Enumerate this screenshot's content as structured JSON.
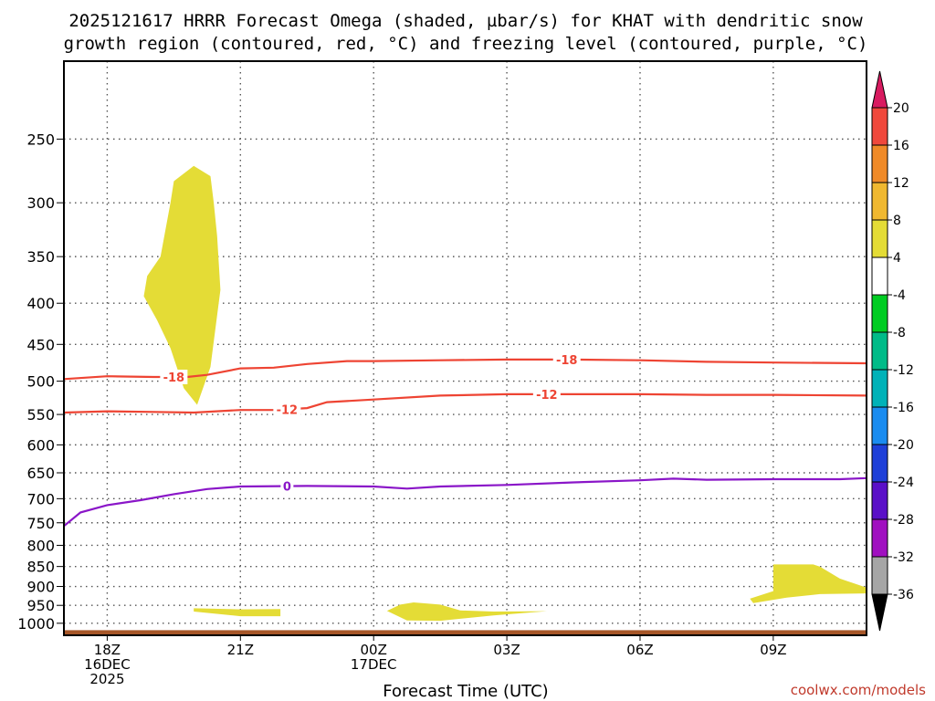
{
  "chart_data": {
    "type": "time-height cross section",
    "title_line1": "2025121617 HRRR Forecast Omega (shaded, µbar/s) for KHAT with dendritic snow",
    "title_line2": "growth region (contoured, red, °C) and freezing level (contoured, purple, °C)",
    "xlabel": "Forecast Time (UTC)",
    "credit": "coolwx.com/models",
    "x_range_hours": [
      -0.65,
      11.4
    ],
    "y_range_hpa": [
      200,
      1035
    ],
    "y_ticks": [
      250,
      300,
      350,
      400,
      450,
      500,
      550,
      600,
      650,
      700,
      750,
      800,
      850,
      900,
      950,
      1000
    ],
    "x_ticks": [
      {
        "hour": 0,
        "lines": [
          "18Z",
          "16DEC",
          "2025"
        ]
      },
      {
        "hour": 2,
        "lines": [
          "21Z"
        ]
      },
      {
        "hour": 4,
        "lines": [
          "00Z",
          "17DEC"
        ]
      },
      {
        "hour": 6,
        "lines": [
          "03Z"
        ]
      },
      {
        "hour": 8,
        "lines": [
          "06Z"
        ]
      },
      {
        "hour": 10,
        "lines": [
          "09Z"
        ]
      }
    ],
    "colorbar": {
      "ticks": [
        "20",
        "16",
        "12",
        "8",
        "4",
        "-4",
        "-8",
        "-12",
        "-16",
        "-20",
        "-24",
        "-28",
        "-32",
        "-36"
      ],
      "colors": [
        "#d81b60",
        "#f0483c",
        "#f08a28",
        "#f0b830",
        "#e4dc36",
        "#ffffff",
        "#00cc22",
        "#00bb88",
        "#00b2b8",
        "#1a8cf0",
        "#1e3fd8",
        "#5a10c8",
        "#a010c0",
        "#a6a6a6",
        "#000000"
      ]
    },
    "contours": [
      {
        "name": "minus-18-isotherm",
        "value": -18,
        "labels": [
          "-18",
          "-18"
        ],
        "label_hours": [
          1.0,
          6.9
        ],
        "color": "#ee4433",
        "points": [
          [
            -0.65,
            497
          ],
          [
            0,
            493
          ],
          [
            0.7,
            494
          ],
          [
            1.2,
            494
          ],
          [
            1.5,
            491
          ],
          [
            2,
            482
          ],
          [
            2.5,
            481
          ],
          [
            3,
            476
          ],
          [
            3.6,
            472
          ],
          [
            4,
            472
          ],
          [
            5,
            471
          ],
          [
            6,
            470
          ],
          [
            7,
            470
          ],
          [
            8,
            471
          ],
          [
            9,
            473
          ],
          [
            10,
            474
          ],
          [
            11.4,
            475
          ]
        ]
      },
      {
        "name": "minus-12-isotherm",
        "value": -12,
        "labels": [
          "-12",
          "-12"
        ],
        "label_hours": [
          2.7,
          6.6
        ],
        "color": "#ee4433",
        "points": [
          [
            -0.65,
            547
          ],
          [
            0,
            545
          ],
          [
            0.7,
            546
          ],
          [
            1.3,
            547
          ],
          [
            2,
            543
          ],
          [
            2.5,
            543
          ],
          [
            3,
            540
          ],
          [
            3.3,
            531
          ],
          [
            4,
            527
          ],
          [
            5,
            521
          ],
          [
            6,
            519
          ],
          [
            7,
            519
          ],
          [
            8,
            519
          ],
          [
            9,
            520
          ],
          [
            10,
            520
          ],
          [
            11.4,
            521
          ]
        ]
      },
      {
        "name": "freezing-level",
        "value": 0,
        "labels": [
          "0"
        ],
        "label_hours": [
          2.7
        ],
        "color": "#8a16c8",
        "points": [
          [
            -0.65,
            757
          ],
          [
            -0.4,
            728
          ],
          [
            0,
            713
          ],
          [
            0.5,
            703
          ],
          [
            1,
            691
          ],
          [
            1.5,
            681
          ],
          [
            2,
            676
          ],
          [
            3,
            675
          ],
          [
            4,
            676
          ],
          [
            4.5,
            680
          ],
          [
            5,
            676
          ],
          [
            6,
            673
          ],
          [
            7,
            668
          ],
          [
            8,
            664
          ],
          [
            8.5,
            661
          ],
          [
            9,
            663
          ],
          [
            10,
            662
          ],
          [
            11,
            662
          ],
          [
            11.4,
            660
          ]
        ]
      }
    ],
    "omega_regions": [
      {
        "name": "omega-upper",
        "value_band": "4 to 8",
        "color": "#e4dc36",
        "points": [
          [
            1.3,
            270
          ],
          [
            1.55,
            278
          ],
          [
            1.6,
            300
          ],
          [
            1.65,
            330
          ],
          [
            1.7,
            385
          ],
          [
            1.55,
            480
          ],
          [
            1.35,
            535
          ],
          [
            1.15,
            510
          ],
          [
            0.95,
            455
          ],
          [
            0.75,
            420
          ],
          [
            0.55,
            392
          ],
          [
            0.6,
            370
          ],
          [
            0.8,
            350
          ],
          [
            0.95,
            300
          ],
          [
            1.0,
            282
          ]
        ]
      },
      {
        "name": "omega-low-21z",
        "value_band": "4 to 8",
        "color": "#e4dc36",
        "points": [
          [
            1.3,
            958
          ],
          [
            2.0,
            961
          ],
          [
            2.6,
            960
          ],
          [
            2.6,
            980
          ],
          [
            2.0,
            980
          ],
          [
            1.3,
            967
          ]
        ]
      },
      {
        "name": "omega-low-01z",
        "value_band": "4 to 8",
        "color": "#e4dc36",
        "points": [
          [
            4.2,
            965
          ],
          [
            4.4,
            948
          ],
          [
            4.6,
            942
          ],
          [
            5.0,
            948
          ],
          [
            5.3,
            964
          ],
          [
            5.8,
            967
          ],
          [
            6.6,
            966
          ],
          [
            5.8,
            978
          ],
          [
            5.0,
            993
          ],
          [
            4.5,
            992
          ]
        ]
      },
      {
        "name": "omega-low-09z",
        "value_band": "4 to 8",
        "color": "#e4dc36",
        "points": [
          [
            10.0,
            845
          ],
          [
            10.6,
            845
          ],
          [
            10.7,
            850
          ],
          [
            11.0,
            880
          ],
          [
            11.4,
            903
          ],
          [
            11.4,
            918
          ],
          [
            10.7,
            920
          ],
          [
            10.2,
            929
          ],
          [
            9.7,
            944
          ],
          [
            9.65,
            932
          ],
          [
            10.0,
            912
          ]
        ]
      }
    ],
    "terrain": {
      "name": "surface-terrain",
      "color": "#a65628",
      "top_hpa": 1020
    }
  }
}
